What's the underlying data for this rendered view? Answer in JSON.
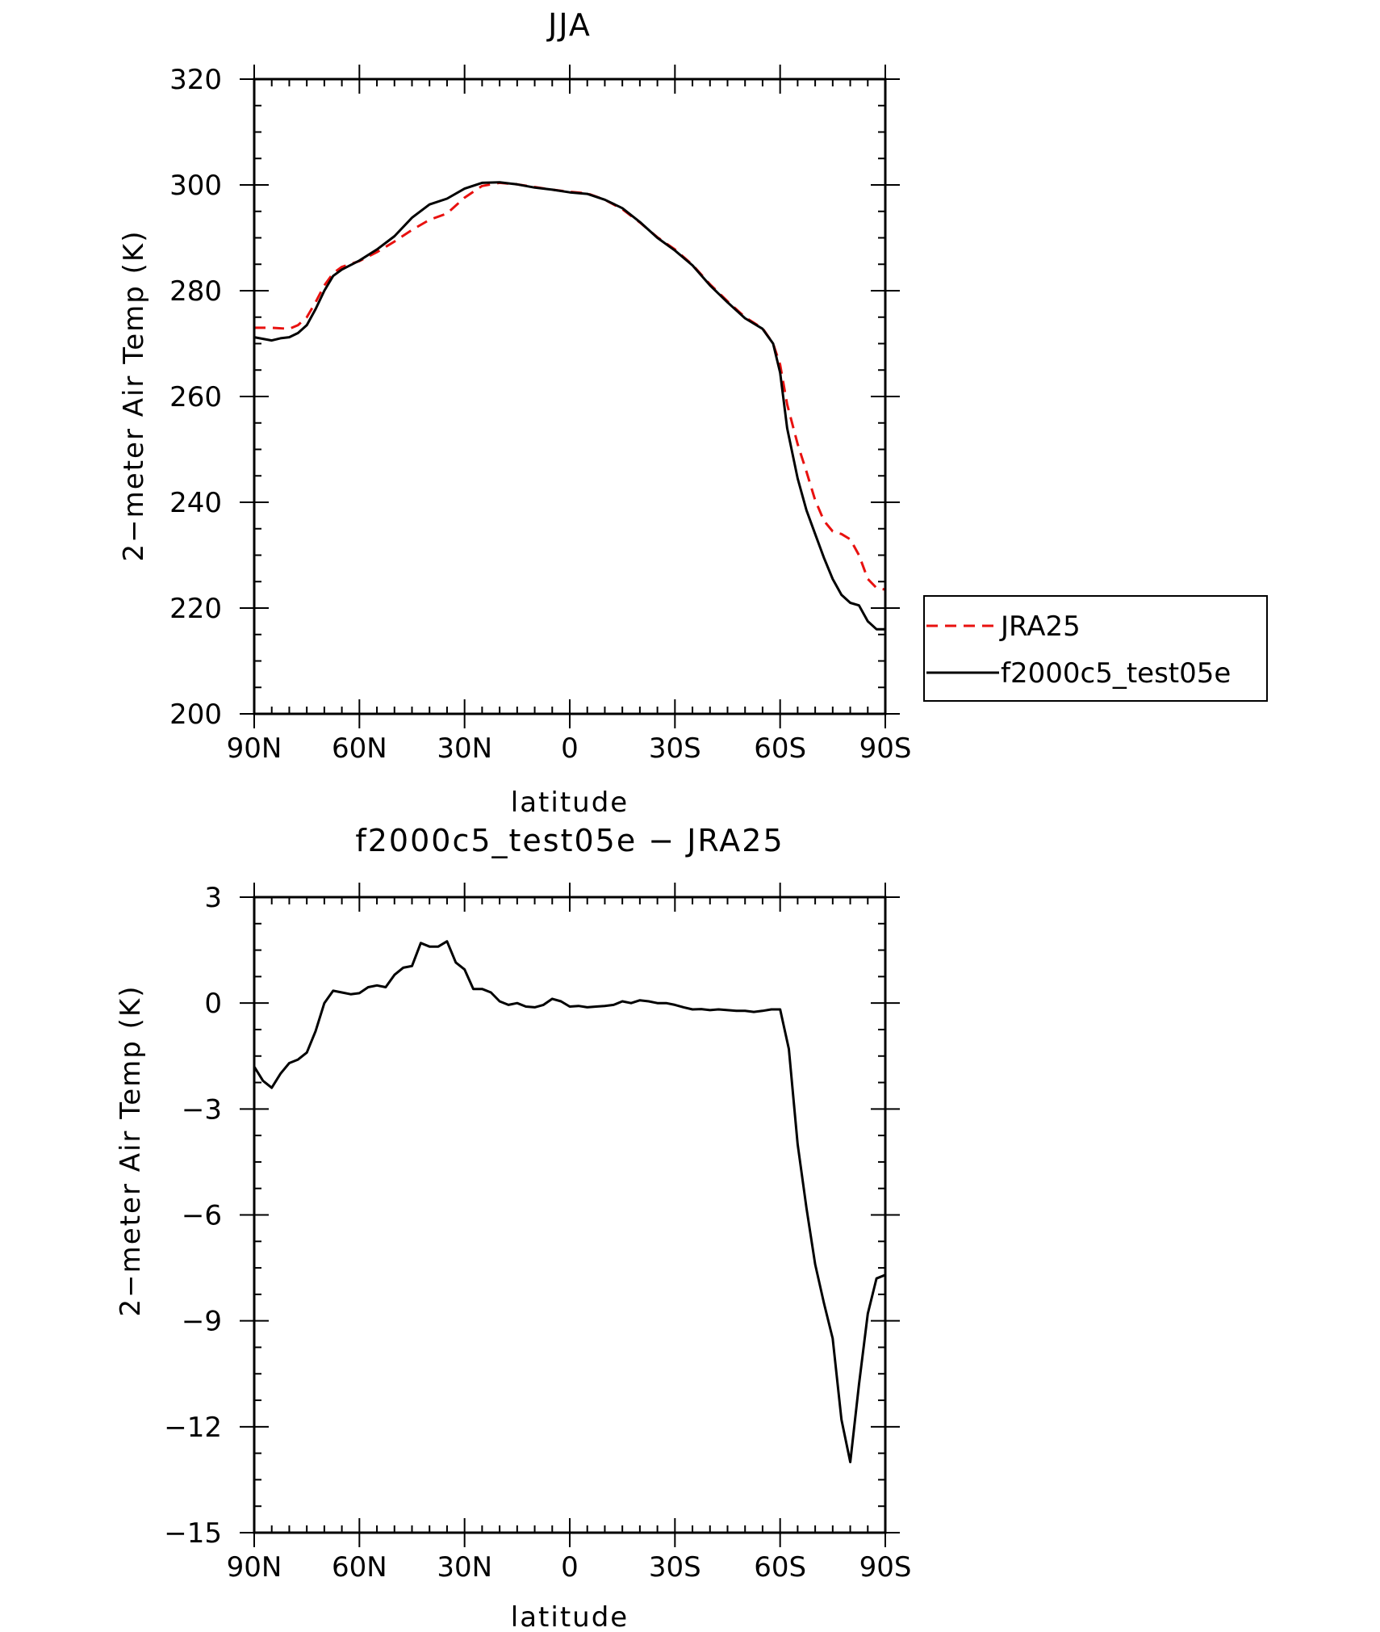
{
  "chart_data": [
    {
      "type": "line",
      "title": "JJA",
      "xlabel": "latitude",
      "ylabel": "2−meter Air Temp (K)",
      "xlim": [
        90,
        -90
      ],
      "ylim": [
        200,
        320
      ],
      "x_tick_values": [
        90,
        60,
        30,
        0,
        -30,
        -60,
        -90
      ],
      "x_tick_labels": [
        "90N",
        "60N",
        "30N",
        "0",
        "30S",
        "60S",
        "90S"
      ],
      "y_tick_values": [
        200,
        220,
        240,
        260,
        280,
        300,
        320
      ],
      "y_tick_labels": [
        "200",
        "220",
        "240",
        "260",
        "280",
        "300",
        "320"
      ],
      "legend": {
        "position": "right"
      },
      "series": [
        {
          "name": "JRA25",
          "color": "#e8110f",
          "dash": "dashed",
          "x": [
            90,
            85,
            80,
            77.5,
            75,
            72.5,
            70,
            67.5,
            65,
            60,
            55,
            50,
            45,
            40,
            35,
            30,
            25,
            20,
            15,
            10,
            5,
            0,
            -5,
            -10,
            -15,
            -20,
            -25,
            -30,
            -35,
            -40,
            -45,
            -50,
            -55,
            -58,
            -60,
            -62,
            -65,
            -67.5,
            -70,
            -72.5,
            -75,
            -77.5,
            -80,
            -82.5,
            -85,
            -87.5,
            -90
          ],
          "y": [
            273.0,
            273.0,
            272.8,
            273.5,
            275.0,
            277.8,
            281.0,
            283.3,
            284.5,
            285.6,
            287.3,
            289.3,
            291.5,
            293.4,
            294.6,
            297.6,
            299.8,
            300.4,
            300.1,
            299.6,
            299.1,
            298.7,
            298.4,
            297.2,
            295.4,
            292.9,
            290.1,
            287.8,
            284.9,
            281.2,
            278.0,
            275.0,
            272.9,
            270.0,
            266.0,
            258.5,
            251.0,
            245.8,
            240.4,
            236.5,
            234.5,
            234.0,
            233.0,
            230.0,
            225.5,
            223.8,
            223.5
          ]
        },
        {
          "name": "f2000c5_test05e",
          "color": "#000000",
          "dash": "solid",
          "x": [
            90,
            87.5,
            85,
            82.5,
            80,
            77.5,
            75,
            72.5,
            70,
            67.5,
            65,
            60,
            55,
            50,
            45,
            40,
            35,
            30,
            25,
            20,
            15,
            10,
            5,
            0,
            -5,
            -10,
            -15,
            -20,
            -25,
            -30,
            -35,
            -40,
            -45,
            -50,
            -55,
            -58,
            -60,
            -62,
            -65,
            -67.5,
            -70,
            -72.5,
            -75,
            -77.5,
            -80,
            -82.5,
            -85,
            -87.5,
            -90
          ],
          "y": [
            271.2,
            270.9,
            270.6,
            271.0,
            271.2,
            272.0,
            273.5,
            276.5,
            280.0,
            282.8,
            284.0,
            285.7,
            287.8,
            290.3,
            293.8,
            296.3,
            297.4,
            299.3,
            300.4,
            300.5,
            300.1,
            299.5,
            299.1,
            298.6,
            298.3,
            297.2,
            295.6,
            293.0,
            290.0,
            287.6,
            284.8,
            281.0,
            277.8,
            274.8,
            272.8,
            270.0,
            264.5,
            254.0,
            244.5,
            238.5,
            234.0,
            229.5,
            225.5,
            222.5,
            221.0,
            220.5,
            217.5,
            216.0,
            216.0
          ]
        }
      ]
    },
    {
      "type": "line",
      "title": "f2000c5_test05e − JRA25",
      "xlabel": "latitude",
      "ylabel": "2−meter Air Temp (K)",
      "xlim": [
        90,
        -90
      ],
      "ylim": [
        -15,
        3
      ],
      "x_tick_values": [
        90,
        60,
        30,
        0,
        -30,
        -60,
        -90
      ],
      "x_tick_labels": [
        "90N",
        "60N",
        "30N",
        "0",
        "30S",
        "60S",
        "90S"
      ],
      "y_tick_values": [
        -15,
        -12,
        -9,
        -6,
        -3,
        0,
        3
      ],
      "y_tick_labels": [
        "−15",
        "−12",
        "−9",
        "−6",
        "−3",
        "0",
        "3"
      ],
      "series": [
        {
          "name": "",
          "color": "#000000",
          "dash": "solid",
          "x": [
            90,
            87.5,
            85,
            82.5,
            80,
            77.5,
            75,
            72.5,
            70,
            67.5,
            65,
            62.5,
            60,
            57.5,
            55,
            52.5,
            50,
            47.5,
            45,
            42.5,
            40,
            37.5,
            35,
            32.5,
            30,
            27.5,
            25,
            22.5,
            20,
            17.5,
            15,
            12.5,
            10,
            7.5,
            5,
            2.5,
            0,
            -2.5,
            -5,
            -7.5,
            -10,
            -12.5,
            -15,
            -17.5,
            -20,
            -22.5,
            -25,
            -27.5,
            -30,
            -32.5,
            -35,
            -37.5,
            -40,
            -42.5,
            -45,
            -47.5,
            -50,
            -52.5,
            -55,
            -57.5,
            -60,
            -62.5,
            -65,
            -67.5,
            -70,
            -72.5,
            -75,
            -77.5,
            -80,
            -82.5,
            -85,
            -87.5,
            -90
          ],
          "y": [
            -1.8,
            -2.2,
            -2.4,
            -2.0,
            -1.7,
            -1.6,
            -1.4,
            -0.8,
            0.0,
            0.35,
            0.3,
            0.25,
            0.28,
            0.45,
            0.5,
            0.45,
            0.8,
            1.0,
            1.05,
            1.7,
            1.6,
            1.6,
            1.75,
            1.15,
            0.95,
            0.4,
            0.4,
            0.3,
            0.05,
            -0.05,
            0.0,
            -0.1,
            -0.12,
            -0.05,
            0.12,
            0.05,
            -0.1,
            -0.08,
            -0.12,
            -0.1,
            -0.08,
            -0.05,
            0.05,
            0.0,
            0.08,
            0.05,
            0.0,
            0.0,
            -0.05,
            -0.12,
            -0.18,
            -0.17,
            -0.2,
            -0.18,
            -0.2,
            -0.22,
            -0.22,
            -0.25,
            -0.22,
            -0.18,
            -0.18,
            -1.3,
            -4.0,
            -5.8,
            -7.4,
            -8.5,
            -9.5,
            -11.8,
            -13.0,
            -10.8,
            -8.8,
            -7.8,
            -7.7
          ]
        }
      ]
    }
  ]
}
